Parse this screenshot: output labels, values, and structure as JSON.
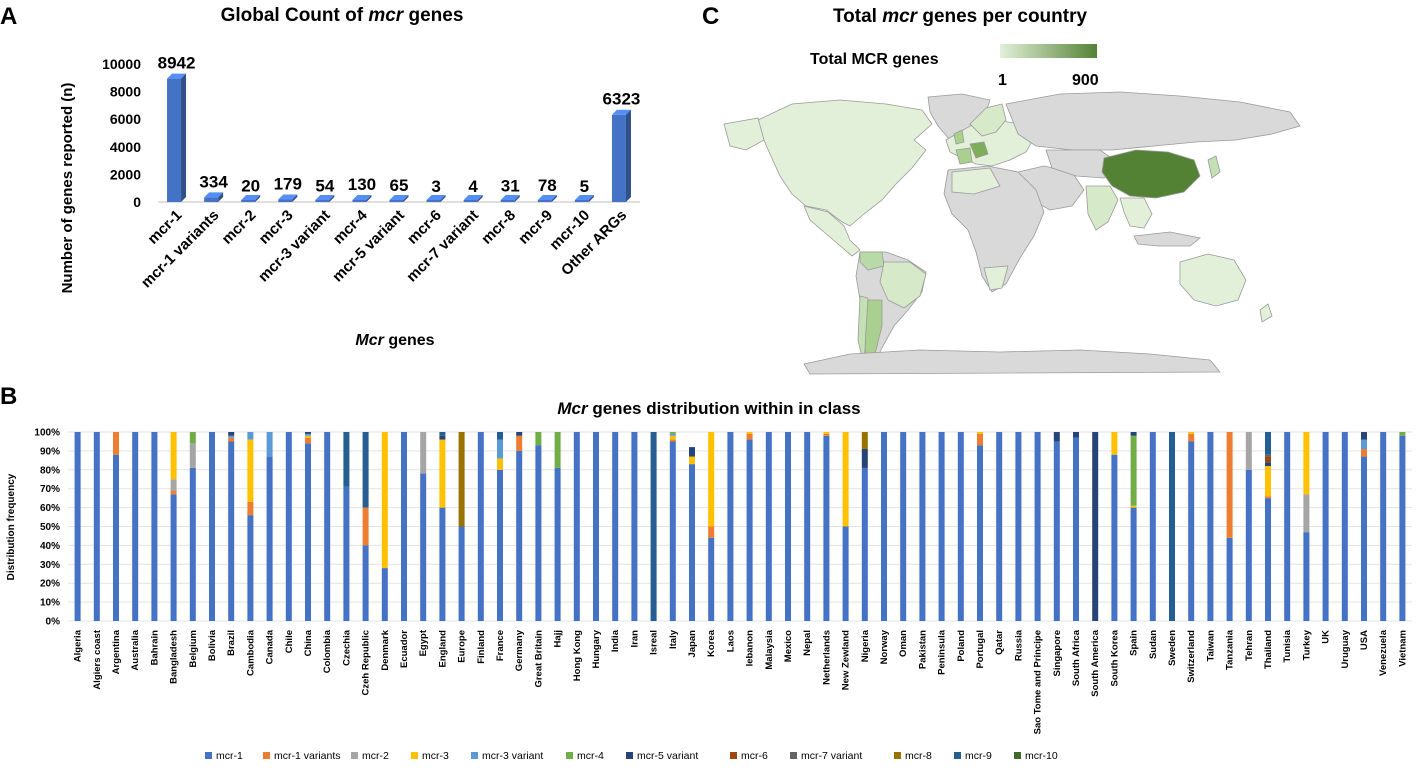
{
  "labels": {
    "A": "A",
    "B": "B",
    "C": "C"
  },
  "chart_data": [
    {
      "type": "bar",
      "panel": "A",
      "title_prefix": "Global Count of ",
      "title_italic": "mcr",
      "title_suffix": " genes",
      "xlabel_italic": "Mcr",
      "xlabel_suffix": " genes",
      "ylabel": "Number of genes reported (n)",
      "ylim": [
        0,
        10000
      ],
      "yticks": [
        "0",
        "2000",
        "4000",
        "6000",
        "8000",
        "10000"
      ],
      "categories": [
        "mcr-1",
        "mcr-1 variants",
        "mcr-2",
        "mcr-3",
        "mcr-3 variant",
        "mcr-4",
        "mcr-5 variant",
        "mcr-6",
        "mcr-7 variant",
        "mcr-8",
        "mcr-9",
        "mcr-10",
        "Other ARGs"
      ],
      "values": [
        8942,
        334,
        20,
        179,
        54,
        130,
        65,
        3,
        4,
        31,
        78,
        5,
        6323
      ],
      "value_labels": [
        "8942",
        "334",
        "20",
        "179",
        "54",
        "130",
        "65",
        "3",
        "4",
        "31",
        "78",
        "5",
        "6323"
      ],
      "color": "#4472c4"
    },
    {
      "type": "map",
      "panel": "C",
      "title_prefix": "Total ",
      "title_italic": "mcr",
      "title_suffix": " genes per country",
      "legend_title": "Total MCR genes",
      "legend_min": "1",
      "legend_max": "900",
      "color_low": "#e2f0d9",
      "color_high": "#548235",
      "no_data_color": "#d9d9d9"
    },
    {
      "type": "stacked-bar",
      "panel": "B",
      "title_italic": "Mcr",
      "title_suffix": " genes distribution  within in class",
      "ylabel": "Distribution frequency",
      "yticks": [
        "0%",
        "10%",
        "20%",
        "30%",
        "40%",
        "50%",
        "60%",
        "70%",
        "80%",
        "90%",
        "100%"
      ],
      "series": [
        {
          "name": "mcr-1",
          "color": "#4472c4"
        },
        {
          "name": "mcr-1 variants",
          "color": "#ed7d31"
        },
        {
          "name": "mcr-2",
          "color": "#a5a5a5"
        },
        {
          "name": "mcr-3",
          "color": "#ffc000"
        },
        {
          "name": "mcr-3 variant",
          "color": "#5b9bd5"
        },
        {
          "name": "mcr-4",
          "color": "#70ad47"
        },
        {
          "name": "mcr-5 variant",
          "color": "#264478"
        },
        {
          "name": "mcr-6",
          "color": "#9e480e"
        },
        {
          "name": "mcr-7 variant",
          "color": "#636363"
        },
        {
          "name": "mcr-8",
          "color": "#997300"
        },
        {
          "name": "mcr-9",
          "color": "#255e91"
        },
        {
          "name": "mcr-10",
          "color": "#43682b"
        }
      ],
      "categories": [
        {
          "name": "Algeria",
          "v": [
            100
          ]
        },
        {
          "name": "Algiers coast",
          "v": [
            100
          ]
        },
        {
          "name": "Argentina",
          "v": [
            88,
            12
          ]
        },
        {
          "name": "Australia",
          "v": [
            100
          ]
        },
        {
          "name": "Bahrain",
          "v": [
            100
          ]
        },
        {
          "name": "Bangladesh",
          "v": [
            67,
            2,
            6,
            25
          ]
        },
        {
          "name": "Belgium",
          "v": [
            81,
            0,
            13,
            0,
            0,
            6
          ]
        },
        {
          "name": "Bolivia",
          "v": [
            100
          ]
        },
        {
          "name": "Brazil",
          "v": [
            95,
            2,
            0,
            0,
            1,
            0,
            2
          ]
        },
        {
          "name": "Cambodia",
          "v": [
            56,
            7,
            0,
            33,
            4
          ]
        },
        {
          "name": "Canada",
          "v": [
            87,
            0,
            0,
            0,
            13
          ]
        },
        {
          "name": "Chile",
          "v": [
            100
          ]
        },
        {
          "name": "China",
          "v": [
            94,
            3,
            0,
            1,
            1,
            0,
            1
          ]
        },
        {
          "name": "Colombia",
          "v": [
            100
          ]
        },
        {
          "name": "Czechia",
          "v": [
            71,
            0,
            0,
            0,
            0,
            0,
            0,
            0,
            0,
            0,
            29
          ]
        },
        {
          "name": "Czeh Republic",
          "v": [
            40,
            20,
            0,
            0,
            0,
            0,
            0,
            0,
            0,
            0,
            40
          ]
        },
        {
          "name": "Denmark",
          "v": [
            28,
            0,
            0,
            72
          ]
        },
        {
          "name": "Ecuador",
          "v": [
            100
          ]
        },
        {
          "name": "Egypt",
          "v": [
            78,
            0,
            22
          ]
        },
        {
          "name": "England",
          "v": [
            60,
            0,
            0,
            36,
            0,
            0,
            2,
            0,
            0,
            0,
            2
          ]
        },
        {
          "name": "Europe",
          "v": [
            50,
            0,
            0,
            0,
            0,
            0,
            0,
            0,
            0,
            50
          ]
        },
        {
          "name": "Finland",
          "v": [
            100
          ]
        },
        {
          "name": "France",
          "v": [
            80,
            0,
            0,
            6,
            10,
            0,
            0,
            0,
            0,
            0,
            4
          ]
        },
        {
          "name": "Germany",
          "v": [
            90,
            8,
            0,
            0,
            0,
            0,
            2
          ]
        },
        {
          "name": "Great Britain",
          "v": [
            93,
            0,
            0,
            0,
            0,
            7
          ]
        },
        {
          "name": "Hajj",
          "v": [
            81,
            0,
            0,
            0,
            0,
            19
          ]
        },
        {
          "name": "Hong Kong",
          "v": [
            100
          ]
        },
        {
          "name": "Hungary",
          "v": [
            100
          ]
        },
        {
          "name": "India",
          "v": [
            100
          ]
        },
        {
          "name": "Iran",
          "v": [
            100
          ]
        },
        {
          "name": "Isreal",
          "v": [
            0,
            0,
            0,
            0,
            0,
            0,
            0,
            0,
            0,
            0,
            100
          ]
        },
        {
          "name": "Italy",
          "v": [
            95,
            1,
            0,
            2,
            1,
            1
          ]
        },
        {
          "name": "Japan",
          "v": [
            83,
            0,
            0,
            4,
            0,
            0,
            5,
            0,
            0,
            0,
            0,
            0
          ]
        },
        {
          "name": "Korea",
          "v": [
            44,
            6,
            0,
            50
          ]
        },
        {
          "name": "Laos",
          "v": [
            100
          ]
        },
        {
          "name": "lebanon",
          "v": [
            96,
            3,
            0,
            1
          ]
        },
        {
          "name": "Malaysia",
          "v": [
            100
          ]
        },
        {
          "name": "Mexico",
          "v": [
            100
          ]
        },
        {
          "name": "Nepal",
          "v": [
            100
          ]
        },
        {
          "name": "Netherlands",
          "v": [
            98,
            1,
            0,
            1
          ]
        },
        {
          "name": "New Zewland",
          "v": [
            50,
            0,
            0,
            50
          ]
        },
        {
          "name": "Nigeria",
          "v": [
            81,
            0,
            0,
            0,
            0,
            0,
            10,
            0,
            0,
            9
          ]
        },
        {
          "name": "Norway",
          "v": [
            100
          ]
        },
        {
          "name": "Oman",
          "v": [
            100
          ]
        },
        {
          "name": "Pakistan",
          "v": [
            100
          ]
        },
        {
          "name": "Peninsula",
          "v": [
            100
          ]
        },
        {
          "name": "Poland",
          "v": [
            100
          ]
        },
        {
          "name": "Portugal",
          "v": [
            93,
            6,
            0,
            1
          ]
        },
        {
          "name": "Qatar",
          "v": [
            100
          ]
        },
        {
          "name": "Russia",
          "v": [
            100
          ]
        },
        {
          "name": "Sao Tome and Principe",
          "v": [
            100
          ]
        },
        {
          "name": "Singapore",
          "v": [
            95,
            0,
            0,
            0,
            0,
            0,
            5
          ]
        },
        {
          "name": "South Africa",
          "v": [
            97,
            0,
            0,
            0,
            0,
            0,
            3
          ]
        },
        {
          "name": "South America",
          "v": [
            0,
            0,
            0,
            0,
            0,
            0,
            100
          ]
        },
        {
          "name": "South Korea",
          "v": [
            88,
            0,
            0,
            12
          ]
        },
        {
          "name": "Spain",
          "v": [
            60,
            0,
            0,
            1,
            0,
            37,
            2
          ]
        },
        {
          "name": "Sudan",
          "v": [
            100
          ]
        },
        {
          "name": "Sweden",
          "v": [
            0,
            0,
            0,
            0,
            0,
            0,
            0,
            0,
            0,
            0,
            100
          ]
        },
        {
          "name": "Switzerland",
          "v": [
            95,
            4,
            0,
            1
          ]
        },
        {
          "name": "Taiwan",
          "v": [
            100
          ]
        },
        {
          "name": "Tanzania",
          "v": [
            44,
            56
          ]
        },
        {
          "name": "Tehran",
          "v": [
            80,
            0,
            20
          ]
        },
        {
          "name": "Thailand",
          "v": [
            65,
            1,
            0,
            16,
            0,
            0,
            2,
            3,
            1,
            0,
            12
          ]
        },
        {
          "name": "Tunisia",
          "v": [
            100
          ]
        },
        {
          "name": "Turkey",
          "v": [
            47,
            0,
            20,
            33
          ]
        },
        {
          "name": "UK",
          "v": [
            100
          ]
        },
        {
          "name": "Uruguay",
          "v": [
            100
          ]
        },
        {
          "name": "USA",
          "v": [
            87,
            4,
            0,
            0,
            5,
            0,
            4
          ]
        },
        {
          "name": "Venezuela",
          "v": [
            100
          ]
        },
        {
          "name": "Vietnam",
          "v": [
            98,
            0,
            0,
            0,
            0,
            2
          ]
        }
      ]
    }
  ]
}
